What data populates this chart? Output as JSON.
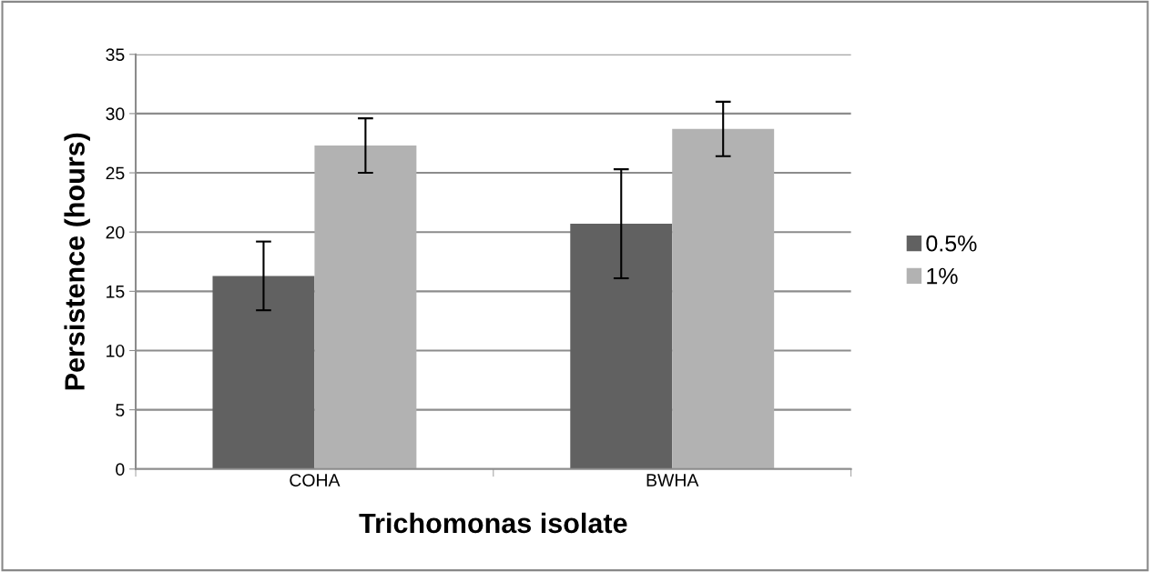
{
  "chart_data": {
    "type": "bar",
    "xlabel": "Trichomonas isolate",
    "ylabel": "Persistence (hours)",
    "categories": [
      "COHA",
      "BWHA"
    ],
    "series": [
      {
        "name": "0.5%",
        "color": "#616161",
        "values": [
          16.3,
          20.7
        ],
        "errors": [
          2.9,
          4.6
        ]
      },
      {
        "name": "1%",
        "color": "#b2b2b2",
        "values": [
          27.3,
          28.7
        ],
        "errors": [
          2.3,
          2.3
        ]
      }
    ],
    "ylim": [
      0,
      35
    ],
    "yticks": [
      0,
      5,
      10,
      15,
      20,
      25,
      30,
      35
    ],
    "grid": "y",
    "legend": "right"
  }
}
